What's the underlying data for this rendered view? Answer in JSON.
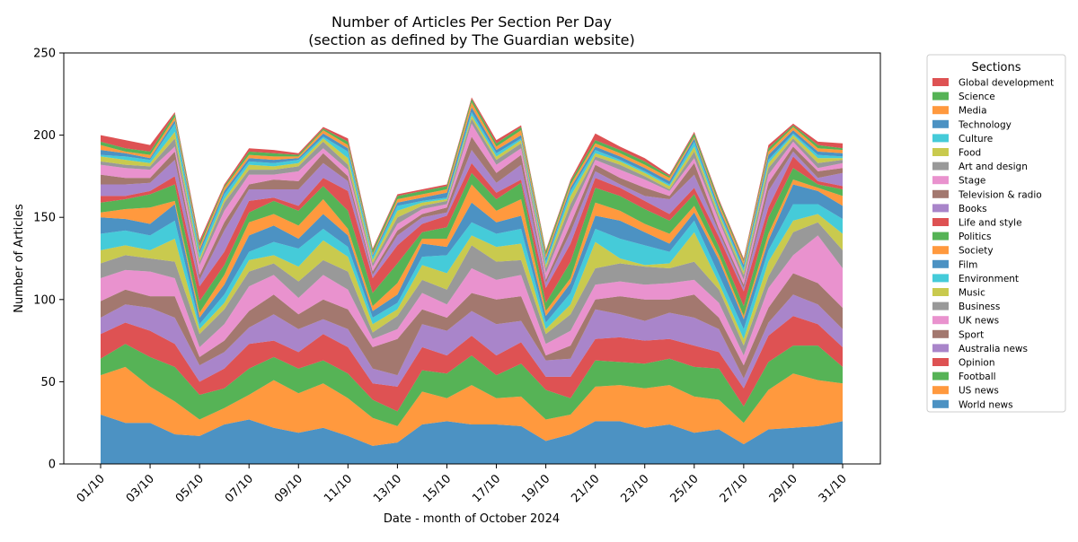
{
  "chart_data": {
    "type": "area",
    "stacked": true,
    "title": "Number of Articles Per Section Per Day",
    "subtitle": "(section as defined by The Guardian website)",
    "xlabel": "Date - month of October 2024",
    "ylabel": "Number of Articles",
    "ylim": [
      0,
      250
    ],
    "yticks": [
      0,
      50,
      100,
      150,
      200,
      250
    ],
    "x": [
      "01/10",
      "02/10",
      "03/10",
      "04/10",
      "05/10",
      "06/10",
      "07/10",
      "08/10",
      "09/10",
      "10/10",
      "11/10",
      "12/10",
      "13/10",
      "14/10",
      "15/10",
      "16/10",
      "17/10",
      "18/10",
      "19/10",
      "20/10",
      "21/10",
      "22/10",
      "23/10",
      "24/10",
      "25/10",
      "26/10",
      "27/10",
      "28/10",
      "29/10",
      "30/10",
      "31/10"
    ],
    "xticks": [
      "01/10",
      "03/10",
      "05/10",
      "07/10",
      "09/10",
      "11/10",
      "13/10",
      "15/10",
      "17/10",
      "19/10",
      "21/10",
      "23/10",
      "25/10",
      "27/10",
      "29/10",
      "31/10"
    ],
    "grid": false,
    "legend": {
      "title": "Sections",
      "placement": "outside-right"
    },
    "series": [
      {
        "name": "World news",
        "color": "#1f77b4",
        "values": [
          30,
          25,
          25,
          18,
          17,
          24,
          27,
          22,
          19,
          22,
          17,
          11,
          13,
          24,
          26,
          24,
          24,
          23,
          14,
          18,
          26,
          26,
          22,
          24,
          19,
          21,
          12,
          21,
          22,
          23,
          26
        ]
      },
      {
        "name": "US news",
        "color": "#ff7f0e",
        "values": [
          24,
          34,
          22,
          20,
          10,
          10,
          15,
          29,
          24,
          27,
          23,
          17,
          10,
          20,
          14,
          24,
          16,
          18,
          13,
          12,
          21,
          22,
          24,
          24,
          22,
          18,
          13,
          24,
          33,
          28,
          23
        ]
      },
      {
        "name": "Football",
        "color": "#2ca02c",
        "values": [
          10,
          14,
          18,
          21,
          15,
          12,
          16,
          14,
          15,
          14,
          15,
          11,
          9,
          13,
          15,
          18,
          14,
          20,
          18,
          10,
          16,
          14,
          15,
          16,
          18,
          19,
          10,
          17,
          17,
          21,
          10
        ]
      },
      {
        "name": "Opinion",
        "color": "#d62728",
        "values": [
          15,
          13,
          16,
          14,
          8,
          12,
          15,
          10,
          10,
          16,
          16,
          10,
          15,
          14,
          11,
          12,
          12,
          13,
          8,
          13,
          13,
          15,
          14,
          12,
          13,
          10,
          11,
          16,
          18,
          13,
          12
        ]
      },
      {
        "name": "Australia news",
        "color": "#9467bd",
        "values": [
          10,
          11,
          14,
          16,
          10,
          10,
          10,
          16,
          14,
          9,
          11,
          9,
          7,
          14,
          15,
          15,
          19,
          13,
          10,
          11,
          18,
          14,
          12,
          16,
          17,
          14,
          6,
          8,
          13,
          12,
          11
        ]
      },
      {
        "name": "Sport",
        "color": "#8c564b",
        "values": [
          10,
          9,
          7,
          13,
          5,
          7,
          10,
          12,
          9,
          12,
          12,
          13,
          22,
          9,
          8,
          11,
          15,
          15,
          3,
          8,
          6,
          11,
          13,
          8,
          14,
          7,
          8,
          9,
          13,
          13,
          13
        ]
      },
      {
        "name": "UK news",
        "color": "#e377c2",
        "values": [
          14,
          12,
          15,
          11,
          6,
          10,
          15,
          12,
          10,
          15,
          12,
          5,
          6,
          10,
          8,
          15,
          12,
          13,
          7,
          9,
          9,
          9,
          9,
          10,
          9,
          9,
          6,
          12,
          11,
          29,
          24
        ]
      },
      {
        "name": "Business",
        "color": "#7f7f7f",
        "values": [
          9,
          9,
          8,
          10,
          8,
          9,
          9,
          7,
          10,
          9,
          11,
          4,
          8,
          8,
          9,
          14,
          11,
          9,
          6,
          10,
          10,
          11,
          11,
          9,
          11,
          8,
          6,
          7,
          14,
          8,
          11
        ]
      },
      {
        "name": "Music",
        "color": "#bcbd22",
        "values": [
          8,
          6,
          5,
          14,
          3,
          4,
          7,
          5,
          9,
          12,
          9,
          5,
          4,
          9,
          10,
          6,
          9,
          10,
          3,
          6,
          16,
          3,
          1,
          3,
          18,
          4,
          4,
          9,
          7,
          5,
          10
        ]
      },
      {
        "name": "Environment",
        "color": "#17becf",
        "values": [
          10,
          9,
          9,
          11,
          3,
          5,
          5,
          8,
          11,
          7,
          6,
          4,
          4,
          5,
          11,
          8,
          8,
          9,
          4,
          7,
          8,
          12,
          12,
          7,
          7,
          5,
          6,
          7,
          10,
          6,
          9
        ]
      },
      {
        "name": "Film",
        "color": "#1f77b4",
        "values": [
          10,
          7,
          7,
          10,
          4,
          6,
          10,
          10,
          6,
          9,
          7,
          4,
          5,
          8,
          5,
          12,
          7,
          8,
          4,
          6,
          8,
          11,
          8,
          5,
          5,
          9,
          6,
          6,
          12,
          8,
          8
        ]
      },
      {
        "name": "Society",
        "color": "#ff7f0e",
        "values": [
          3,
          6,
          10,
          2,
          3,
          6,
          8,
          7,
          8,
          9,
          4,
          3,
          7,
          3,
          5,
          11,
          7,
          10,
          3,
          3,
          8,
          6,
          5,
          6,
          4,
          3,
          2,
          4,
          3,
          2,
          6
        ]
      },
      {
        "name": "Politics",
        "color": "#2ca02c",
        "values": [
          6,
          6,
          8,
          10,
          7,
          6,
          6,
          8,
          9,
          8,
          11,
          8,
          12,
          4,
          7,
          7,
          7,
          10,
          5,
          10,
          9,
          9,
          9,
          8,
          7,
          5,
          6,
          10,
          7,
          2,
          4
        ]
      },
      {
        "name": "Life and style",
        "color": "#d62728",
        "values": [
          4,
          2,
          2,
          5,
          9,
          8,
          7,
          2,
          3,
          5,
          12,
          9,
          11,
          5,
          7,
          6,
          4,
          2,
          9,
          11,
          6,
          5,
          5,
          4,
          4,
          6,
          9,
          6,
          7,
          2,
          2
        ]
      },
      {
        "name": "Books",
        "color": "#9467bd",
        "values": [
          7,
          7,
          5,
          10,
          4,
          13,
          7,
          5,
          10,
          9,
          6,
          2,
          6,
          4,
          2,
          8,
          6,
          9,
          3,
          7,
          4,
          2,
          3,
          9,
          8,
          3,
          2,
          10,
          3,
          2,
          8
        ]
      },
      {
        "name": "Television & radio",
        "color": "#8c564b",
        "values": [
          6,
          4,
          3,
          5,
          3,
          5,
          3,
          6,
          5,
          6,
          3,
          2,
          3,
          2,
          3,
          8,
          6,
          6,
          2,
          5,
          4,
          4,
          5,
          2,
          7,
          2,
          2,
          5,
          3,
          4,
          3
        ]
      },
      {
        "name": "Stage",
        "color": "#e377c2",
        "values": [
          6,
          6,
          5,
          3,
          6,
          7,
          6,
          3,
          6,
          3,
          4,
          3,
          4,
          3,
          2,
          8,
          5,
          4,
          4,
          7,
          3,
          5,
          5,
          3,
          3,
          5,
          3,
          5,
          3,
          2,
          3
        ]
      },
      {
        "name": "Art and design",
        "color": "#7f7f7f",
        "values": [
          2,
          2,
          2,
          5,
          2,
          5,
          3,
          3,
          3,
          4,
          3,
          2,
          4,
          2,
          2,
          3,
          3,
          3,
          3,
          5,
          2,
          3,
          2,
          1,
          4,
          2,
          3,
          4,
          2,
          3,
          2
        ]
      },
      {
        "name": "Food",
        "color": "#bcbd22",
        "values": [
          3,
          3,
          2,
          4,
          2,
          2,
          3,
          2,
          2,
          2,
          4,
          2,
          4,
          2,
          1,
          2,
          2,
          2,
          2,
          5,
          2,
          2,
          2,
          2,
          3,
          2,
          2,
          3,
          2,
          3,
          1
        ]
      },
      {
        "name": "Culture",
        "color": "#17becf",
        "values": [
          1,
          2,
          2,
          5,
          3,
          3,
          2,
          2,
          2,
          1,
          4,
          2,
          3,
          1,
          1,
          2,
          2,
          1,
          2,
          3,
          2,
          1,
          1,
          1,
          3,
          2,
          2,
          2,
          1,
          2,
          1
        ]
      },
      {
        "name": "Technology",
        "color": "#1f77b4",
        "values": [
          3,
          2,
          1,
          2,
          2,
          2,
          2,
          2,
          1,
          2,
          2,
          1,
          2,
          2,
          3,
          3,
          2,
          2,
          2,
          2,
          2,
          2,
          2,
          2,
          2,
          2,
          2,
          3,
          2,
          2,
          2
        ]
      },
      {
        "name": "Media",
        "color": "#ff7f0e",
        "values": [
          3,
          1,
          2,
          2,
          2,
          2,
          2,
          2,
          1,
          2,
          2,
          1,
          2,
          2,
          2,
          3,
          2,
          3,
          2,
          2,
          2,
          2,
          2,
          2,
          1,
          2,
          2,
          2,
          2,
          2,
          2
        ]
      },
      {
        "name": "Science",
        "color": "#2ca02c",
        "values": [
          2,
          2,
          2,
          2,
          2,
          1,
          2,
          2,
          1,
          1,
          2,
          2,
          2,
          2,
          2,
          2,
          2,
          2,
          2,
          2,
          2,
          2,
          2,
          1,
          2,
          2,
          1,
          2,
          1,
          2,
          1
        ]
      },
      {
        "name": "Global development",
        "color": "#d62728",
        "values": [
          4,
          5,
          4,
          1,
          2,
          1,
          2,
          2,
          1,
          1,
          2,
          1,
          1,
          1,
          1,
          1,
          2,
          1,
          1,
          1,
          4,
          2,
          2,
          1,
          1,
          1,
          1,
          2,
          1,
          2,
          3
        ]
      }
    ]
  }
}
